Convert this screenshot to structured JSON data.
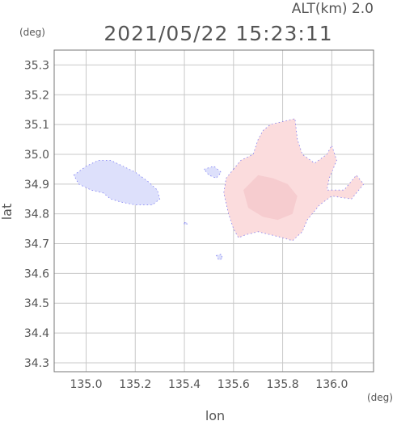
{
  "header": {
    "alt_label": "ALT(km) 2.0",
    "timestamp": "2021/05/22 15:23:11",
    "y_unit": "(deg)",
    "x_unit": "(deg)"
  },
  "chart_data": {
    "type": "heatmap",
    "xlabel": "lon",
    "ylabel": "lat",
    "xlim": [
      134.87,
      136.17
    ],
    "ylim": [
      34.27,
      35.35
    ],
    "x_ticks": [
      "135.0",
      "135.2",
      "135.4",
      "135.6",
      "135.8",
      "136.0"
    ],
    "y_ticks": [
      "34.3",
      "34.4",
      "34.5",
      "34.6",
      "34.7",
      "34.8",
      "34.9",
      "35.0",
      "35.1",
      "35.2",
      "35.3"
    ],
    "grid": true,
    "colors": {
      "negative": "#dde0fb",
      "positive": "#fbdcdd",
      "positive_core": "#f6cccf",
      "edge": "#4a4af0"
    },
    "regions": [
      {
        "sign": "negative",
        "polygon": [
          [
            134.95,
            34.93
          ],
          [
            135.0,
            34.96
          ],
          [
            135.05,
            34.98
          ],
          [
            135.1,
            34.98
          ],
          [
            135.15,
            34.96
          ],
          [
            135.2,
            34.94
          ],
          [
            135.25,
            34.91
          ],
          [
            135.29,
            34.88
          ],
          [
            135.3,
            34.85
          ],
          [
            135.27,
            34.83
          ],
          [
            135.2,
            34.83
          ],
          [
            135.14,
            34.84
          ],
          [
            135.1,
            34.85
          ],
          [
            135.07,
            34.87
          ],
          [
            135.02,
            34.88
          ],
          [
            134.97,
            34.9
          ]
        ]
      },
      {
        "sign": "negative",
        "polygon": [
          [
            135.48,
            34.95
          ],
          [
            135.52,
            34.96
          ],
          [
            135.55,
            34.94
          ],
          [
            135.53,
            34.92
          ],
          [
            135.5,
            34.93
          ]
        ]
      },
      {
        "sign": "positive",
        "polygon": [
          [
            135.6,
            34.95
          ],
          [
            135.63,
            34.98
          ],
          [
            135.68,
            35.0
          ],
          [
            135.7,
            35.05
          ],
          [
            135.72,
            35.08
          ],
          [
            135.75,
            35.1
          ],
          [
            135.8,
            35.11
          ],
          [
            135.85,
            35.12
          ],
          [
            135.86,
            35.05
          ],
          [
            135.88,
            35.0
          ],
          [
            135.93,
            34.97
          ],
          [
            135.98,
            35.0
          ],
          [
            136.0,
            35.03
          ],
          [
            136.02,
            34.98
          ],
          [
            135.99,
            34.92
          ],
          [
            135.98,
            34.88
          ],
          [
            136.05,
            34.88
          ],
          [
            136.1,
            34.93
          ],
          [
            136.13,
            34.9
          ],
          [
            136.08,
            34.85
          ],
          [
            136.0,
            34.86
          ],
          [
            135.95,
            34.83
          ],
          [
            135.9,
            34.78
          ],
          [
            135.88,
            34.74
          ],
          [
            135.84,
            34.71
          ],
          [
            135.8,
            34.72
          ],
          [
            135.75,
            34.73
          ],
          [
            135.7,
            34.74
          ],
          [
            135.65,
            34.73
          ],
          [
            135.62,
            34.72
          ],
          [
            135.6,
            34.75
          ],
          [
            135.58,
            34.8
          ],
          [
            135.56,
            34.87
          ],
          [
            135.57,
            34.92
          ]
        ]
      },
      {
        "sign": "positive_core",
        "polygon": [
          [
            135.64,
            34.88
          ],
          [
            135.7,
            34.93
          ],
          [
            135.76,
            34.92
          ],
          [
            135.82,
            34.9
          ],
          [
            135.86,
            34.86
          ],
          [
            135.84,
            34.8
          ],
          [
            135.78,
            34.78
          ],
          [
            135.72,
            34.79
          ],
          [
            135.66,
            34.82
          ]
        ]
      },
      {
        "sign": "negative",
        "polygon": [
          [
            135.53,
            34.66
          ],
          [
            135.55,
            34.665
          ],
          [
            135.555,
            34.65
          ],
          [
            135.54,
            34.645
          ]
        ]
      },
      {
        "sign": "negative",
        "polygon": [
          [
            135.4,
            34.77
          ],
          [
            135.41,
            34.772
          ],
          [
            135.41,
            34.765
          ],
          [
            135.4,
            34.765
          ]
        ]
      }
    ]
  }
}
